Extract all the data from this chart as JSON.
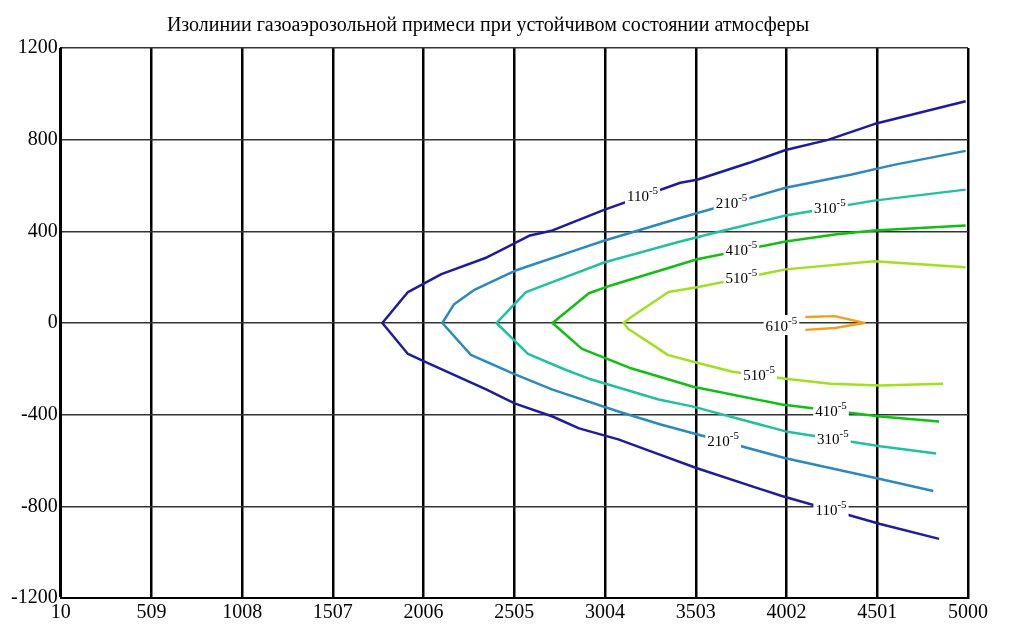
{
  "chart_data": {
    "type": "line",
    "title": "Изолинии газоаэрозольной примеси при устойчивом состоянии атмосферы",
    "xlim": [
      10,
      5000
    ],
    "xticks": [
      10,
      509,
      1008,
      1507,
      2006,
      2505,
      3004,
      3503,
      4002,
      4501,
      5000
    ],
    "ylim": [
      -1200,
      1200
    ],
    "yticks": [
      -1200,
      -800,
      -400,
      0,
      400,
      800,
      1200
    ],
    "grid": true,
    "legend": false,
    "marker": "none",
    "line_style": "solid",
    "series": [
      {
        "name": "110$^{-5}$",
        "color": "#1c1ca0",
        "x": [
          4987,
          4484,
          4230,
          3997,
          3797,
          3510,
          3418,
          3002,
          2715,
          2591,
          2353,
          2104,
          1920,
          1779,
          1920,
          2012,
          2353,
          2510,
          2715,
          2861,
          3077,
          3256,
          3510,
          3976,
          4517,
          4841
        ],
        "values": [
          968,
          868,
          799,
          755,
          699,
          625,
          612,
          495,
          404,
          382,
          286,
          213,
          135,
          0,
          -135,
          -169,
          -291,
          -352,
          -408,
          -460,
          -508,
          -560,
          -634,
          -755,
          -877,
          -942
        ]
      },
      {
        "name": "210$^{-5}$",
        "color": "#2a8ac0",
        "x": [
          4987,
          4592,
          4354,
          3997,
          3402,
          3002,
          2807,
          2515,
          2282,
          2174,
          2109,
          2266,
          2499,
          2715,
          3077,
          3310,
          3997,
          4517,
          4809
        ],
        "values": [
          751,
          690,
          647,
          590,
          455,
          360,
          308,
          230,
          143,
          82,
          0,
          -139,
          -221,
          -291,
          -386,
          -443,
          -590,
          -681,
          -733
        ]
      },
      {
        "name": "310$^{-5}$",
        "color": "#20c0a0",
        "x": [
          4987,
          4484,
          3997,
          3635,
          3402,
          3002,
          2786,
          2569,
          2407,
          2580,
          2786,
          2915,
          3299,
          3489,
          3997,
          4517,
          4825
        ],
        "values": [
          582,
          534,
          469,
          399,
          352,
          265,
          200,
          135,
          0,
          -135,
          -204,
          -243,
          -334,
          -365,
          -473,
          -538,
          -569
        ]
      },
      {
        "name": "410$^{-5}$",
        "color": "#10c010",
        "x": [
          4987,
          4484,
          4268,
          3997,
          3510,
          3040,
          2915,
          2715,
          2877,
          3137,
          3489,
          3976,
          4517,
          4841
        ],
        "values": [
          425,
          404,
          386,
          356,
          278,
          165,
          130,
          0,
          -113,
          -195,
          -278,
          -356,
          -408,
          -430
        ]
      },
      {
        "name": "510$^{-5}$",
        "color": "#a0e020",
        "x": [
          4987,
          4484,
          3997,
          3510,
          3353,
          3148,
          3105,
          3132,
          3283,
          3348,
          3489,
          3705,
          3997,
          4246,
          4517,
          4863
        ],
        "values": [
          243,
          269,
          234,
          156,
          135,
          26,
          0,
          -26,
          -104,
          -139,
          -169,
          -213,
          -243,
          -265,
          -273,
          -265
        ]
      },
      {
        "name": "610$^{-5}$",
        "color": "#f0a020",
        "x": [
          4105,
          4268,
          4430,
          4268,
          4105
        ],
        "values": [
          26,
          30,
          0,
          -22,
          -30
        ]
      }
    ]
  }
}
